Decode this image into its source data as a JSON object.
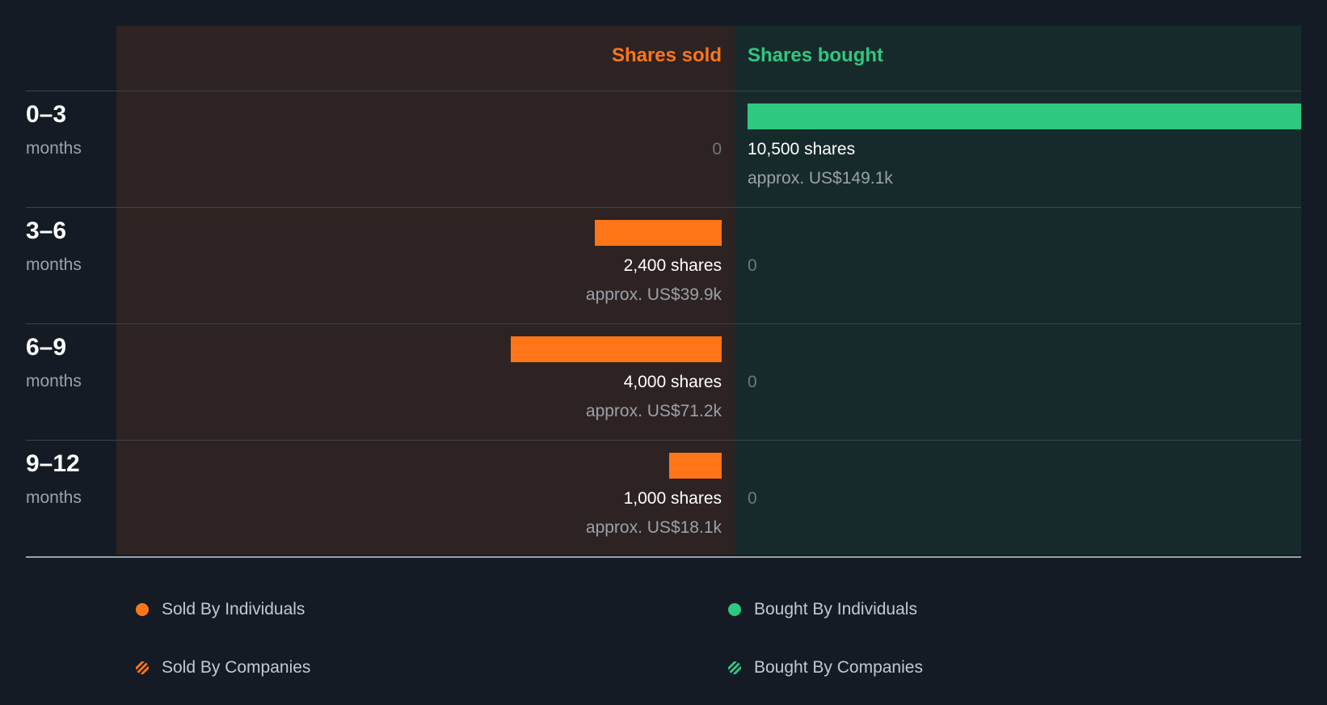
{
  "chart_data": {
    "type": "bar",
    "categories": [
      {
        "label": "0–3",
        "unit": "months"
      },
      {
        "label": "3–6",
        "unit": "months"
      },
      {
        "label": "6–9",
        "unit": "months"
      },
      {
        "label": "9–12",
        "unit": "months"
      }
    ],
    "headers": {
      "sold": "Shares sold",
      "bought": "Shares bought"
    },
    "series": [
      {
        "key": "sold",
        "values": [
          0,
          2400,
          4000,
          1000
        ],
        "shares_text": [
          "0",
          "2,400 shares",
          "4,000 shares",
          "1,000 shares"
        ],
        "approx_text": [
          "",
          "approx. US$39.9k",
          "approx. US$71.2k",
          "approx. US$18.1k"
        ]
      },
      {
        "key": "bought",
        "values": [
          10500,
          0,
          0,
          0
        ],
        "shares_text": [
          "10,500 shares",
          "0",
          "0",
          "0"
        ],
        "approx_text": [
          "approx. US$149.1k",
          "",
          "",
          ""
        ]
      }
    ],
    "xlim": [
      0,
      10500
    ],
    "legend": {
      "placement": "bottom",
      "items": [
        {
          "label": "Sold By Individuals",
          "color": "#ff7518",
          "style": "solid"
        },
        {
          "label": "Bought By Individuals",
          "color": "#2ec880",
          "style": "solid"
        },
        {
          "label": "Sold By Companies",
          "color": "#ff7518",
          "style": "hatched"
        },
        {
          "label": "Bought By Companies",
          "color": "#2ec880",
          "style": "hatched"
        }
      ]
    },
    "colors": {
      "sold": "#ff7518",
      "bought": "#2ec880",
      "sold_panel": "#2d2322",
      "bought_panel": "#172a2b",
      "background": "#151b24"
    }
  }
}
